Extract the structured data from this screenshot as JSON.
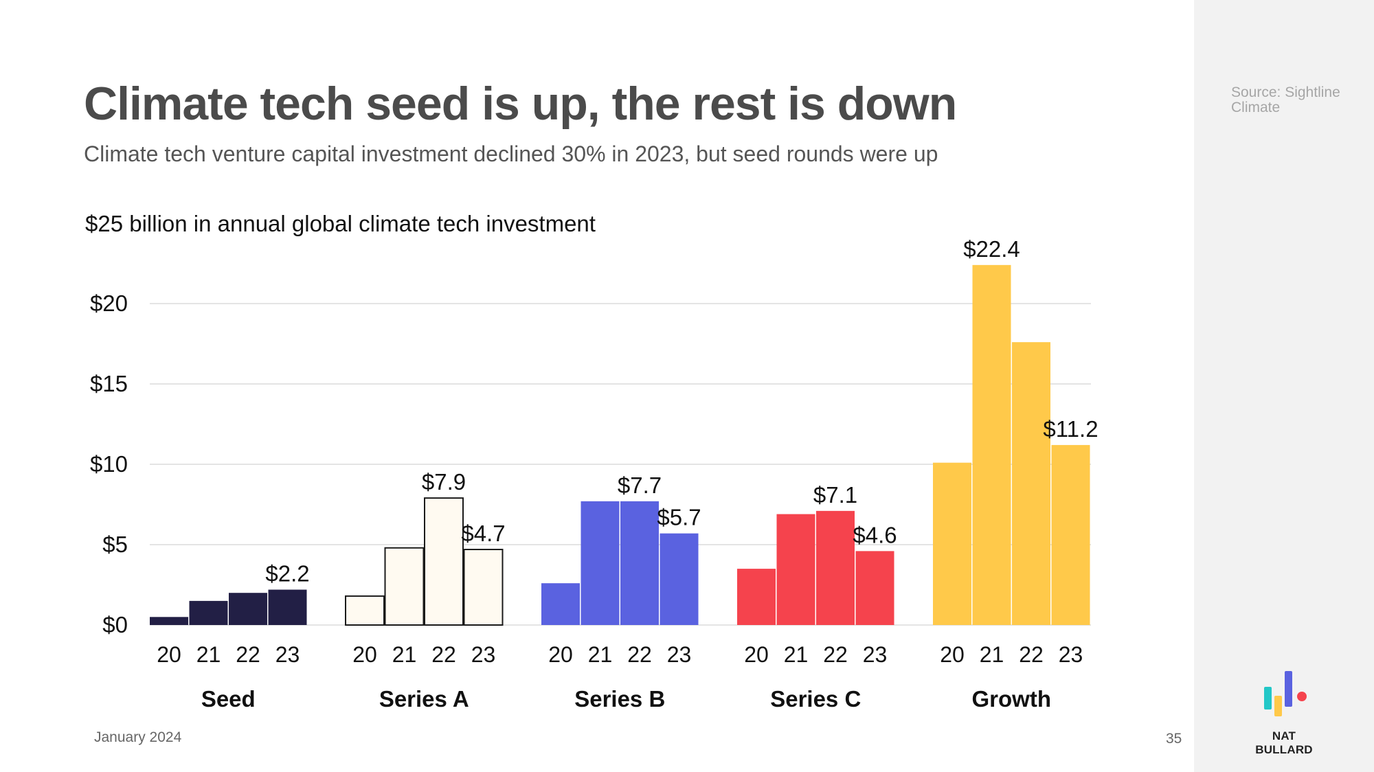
{
  "slide": {
    "title": "Climate tech seed is up, the rest is down",
    "subtitle": "Climate tech venture capital investment declined 30% in 2023, but seed rounds were up",
    "source": "Source: Sightline Climate",
    "date": "January 2024",
    "page_number": "35",
    "brand": "NAT BULLARD"
  },
  "chart_data": {
    "type": "bar",
    "title": "$25 billion in annual global climate tech investment",
    "ylim": [
      0,
      25
    ],
    "y_ticks": [
      0,
      5,
      10,
      15,
      20
    ],
    "y_tick_labels": [
      "$0",
      "$5",
      "$10",
      "$15",
      "$20"
    ],
    "grid": true,
    "year_labels": [
      "20",
      "21",
      "22",
      "23"
    ],
    "groups": [
      {
        "name": "Seed",
        "color": "#221f45",
        "outline": false,
        "values": [
          0.5,
          1.5,
          2.0,
          2.2
        ],
        "labels": [
          null,
          null,
          null,
          "$2.2"
        ]
      },
      {
        "name": "Series A",
        "color": "#fffaf1",
        "outline": true,
        "values": [
          1.8,
          4.8,
          7.9,
          4.7
        ],
        "labels": [
          null,
          null,
          "$7.9",
          "$4.7"
        ]
      },
      {
        "name": "Series B",
        "color": "#5a62e0",
        "outline": false,
        "values": [
          2.6,
          7.7,
          7.7,
          5.7
        ],
        "labels": [
          null,
          null,
          "$7.7",
          "$5.7"
        ]
      },
      {
        "name": "Series C",
        "color": "#f5434d",
        "outline": false,
        "values": [
          3.5,
          6.9,
          7.1,
          4.6
        ],
        "labels": [
          null,
          null,
          "$7.1",
          "$4.6"
        ]
      },
      {
        "name": "Growth",
        "color": "#ffc94a",
        "outline": false,
        "values": [
          10.1,
          22.4,
          17.6,
          11.2
        ],
        "labels": [
          null,
          "$22.4",
          null,
          "$11.2"
        ]
      }
    ]
  },
  "colors": {
    "gridline": "#dcdcdc",
    "axis_text": "#111111",
    "bar_outline": "#1a1a1a",
    "logo_teal": "#22c7c7",
    "logo_yellow": "#ffc94a",
    "logo_purple": "#5a62e0",
    "logo_red": "#f5434d"
  }
}
